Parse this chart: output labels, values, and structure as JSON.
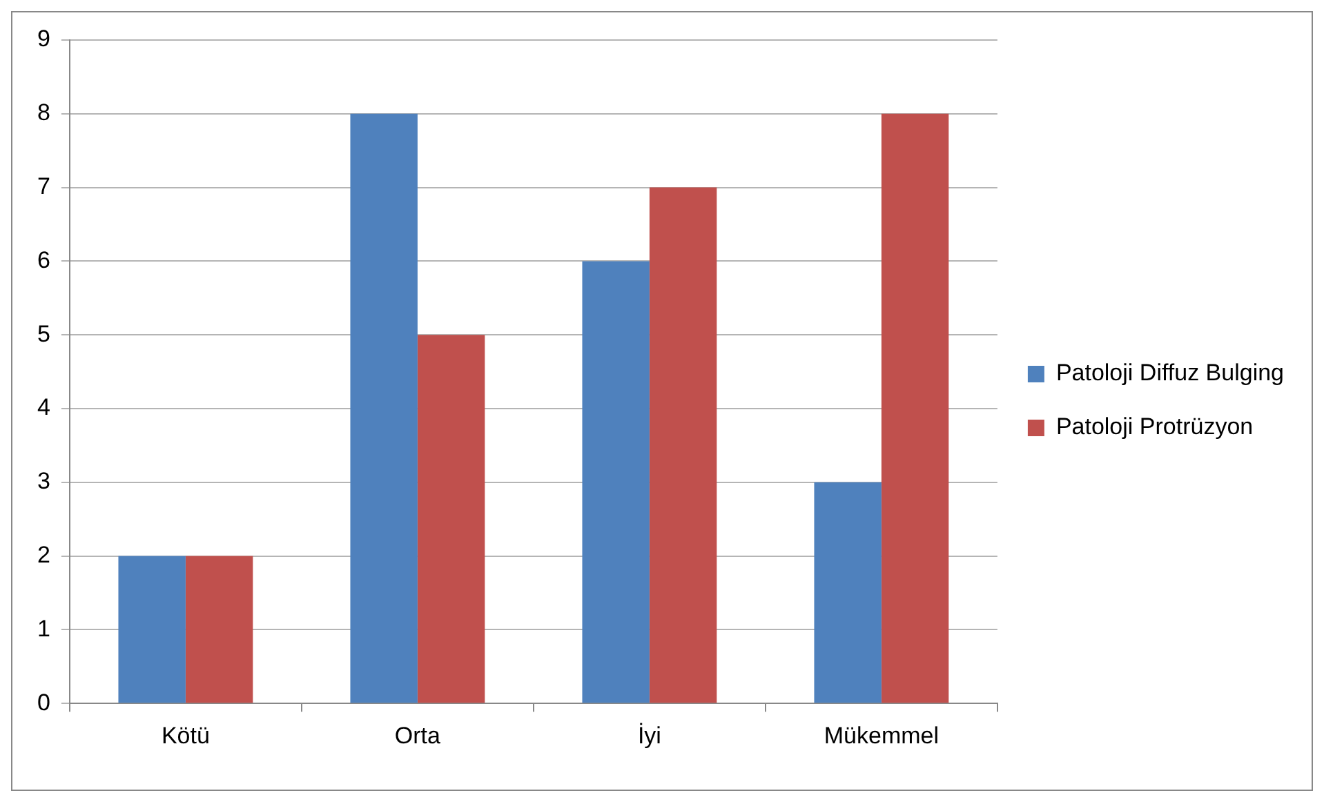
{
  "chart_data": {
    "type": "bar",
    "categories": [
      "Kötü",
      "Orta",
      "İyi",
      "Mükemmel"
    ],
    "series": [
      {
        "name": "Patoloji Diffuz Bulging",
        "color": "#4f81bd",
        "values": [
          2,
          8,
          6,
          3
        ]
      },
      {
        "name": "Patoloji Protrüzyon",
        "color": "#c0504d",
        "values": [
          2,
          5,
          7,
          8
        ]
      }
    ],
    "ylim": [
      0,
      9
    ],
    "yticks": [
      0,
      1,
      2,
      3,
      4,
      5,
      6,
      7,
      8,
      9
    ],
    "grid": "y",
    "legend": "right"
  }
}
